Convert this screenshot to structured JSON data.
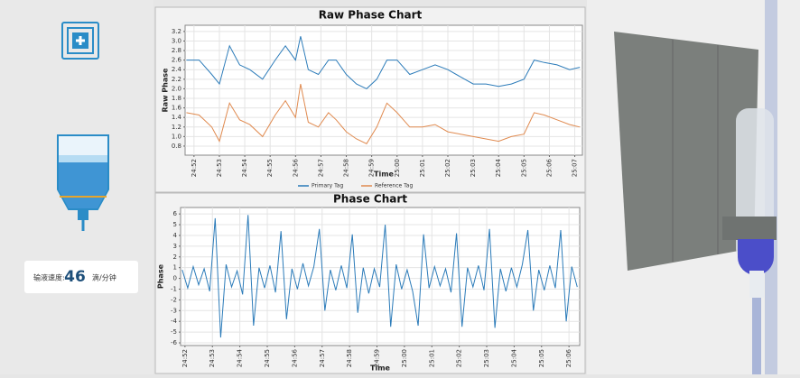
{
  "flow_rate": {
    "label": "输液速度:",
    "value": "46",
    "unit": "滴/分钟"
  },
  "chart_data": [
    {
      "type": "line",
      "title": "Raw Phase Chart",
      "x_label": "Time",
      "y_label": "Raw Phase",
      "grid": true,
      "legend": "bottom",
      "xlim": [
        1491.65,
        1507.3
      ],
      "ylim": [
        0.61,
        3.33
      ],
      "xticks": [
        {
          "value": 1492,
          "label": "24:52"
        },
        {
          "value": 1493,
          "label": "24:53"
        },
        {
          "value": 1494,
          "label": "24:54"
        },
        {
          "value": 1495,
          "label": "24:55"
        },
        {
          "value": 1496,
          "label": "24:56"
        },
        {
          "value": 1497,
          "label": "24:57"
        },
        {
          "value": 1498,
          "label": "24:58"
        },
        {
          "value": 1499,
          "label": "24:59"
        },
        {
          "value": 1500,
          "label": "25:00"
        },
        {
          "value": 1501,
          "label": "25:01"
        },
        {
          "value": 1502,
          "label": "25:02"
        },
        {
          "value": 1503,
          "label": "25:03"
        },
        {
          "value": 1504,
          "label": "25:04"
        },
        {
          "value": 1505,
          "label": "25:05"
        },
        {
          "value": 1506,
          "label": "25:06"
        },
        {
          "value": 1507,
          "label": "25:07"
        }
      ],
      "yticks": [
        0.8,
        {
          "value": 1,
          "label": "1.0"
        },
        1.2,
        1.4,
        1.6,
        1.8,
        {
          "value": 2,
          "label": "2.0"
        },
        2.2,
        2.4,
        2.6,
        2.8,
        {
          "value": 3,
          "label": "3.0"
        },
        3.2
      ],
      "x": [
        1491.7,
        1492.2,
        1492.7,
        1493.0,
        1493.4,
        1493.8,
        1494.2,
        1494.7,
        1495.2,
        1495.6,
        1496.0,
        1496.2,
        1496.5,
        1496.9,
        1497.3,
        1497.6,
        1498.0,
        1498.4,
        1498.8,
        1499.2,
        1499.6,
        1500.0,
        1500.5,
        1501.0,
        1501.5,
        1502.0,
        1502.5,
        1503.0,
        1503.5,
        1504.0,
        1504.5,
        1505.0,
        1505.4,
        1505.8,
        1506.3,
        1506.8,
        1507.2
      ],
      "series": [
        {
          "name": "Primary Tag",
          "color": "#2b7bb9",
          "values": [
            2.6,
            2.6,
            2.3,
            2.1,
            2.9,
            2.5,
            2.4,
            2.2,
            2.6,
            2.9,
            2.6,
            3.1,
            2.4,
            2.3,
            2.6,
            2.6,
            2.3,
            2.1,
            2.0,
            2.2,
            2.6,
            2.6,
            2.3,
            2.4,
            2.5,
            2.4,
            2.25,
            2.1,
            2.1,
            2.05,
            2.1,
            2.2,
            2.6,
            2.55,
            2.5,
            2.4,
            2.45
          ]
        },
        {
          "name": "Reference Tag",
          "color": "#e08a4f",
          "values": [
            1.5,
            1.45,
            1.2,
            0.9,
            1.7,
            1.35,
            1.25,
            1.0,
            1.45,
            1.75,
            1.4,
            2.1,
            1.3,
            1.2,
            1.5,
            1.35,
            1.1,
            0.95,
            0.85,
            1.2,
            1.7,
            1.5,
            1.2,
            1.2,
            1.25,
            1.1,
            1.05,
            1.0,
            0.95,
            0.9,
            1.0,
            1.05,
            1.5,
            1.45,
            1.35,
            1.25,
            1.2
          ]
        }
      ]
    },
    {
      "type": "line",
      "title": "Phase Chart",
      "x_label": "Time",
      "y_label": "Phase",
      "grid": true,
      "xlim": [
        1491.84,
        1506.39
      ],
      "ylim": [
        -6.25,
        6.6
      ],
      "xticks": [
        {
          "value": 1492,
          "label": "24:52"
        },
        {
          "value": 1493,
          "label": "24:53"
        },
        {
          "value": 1494,
          "label": "24:54"
        },
        {
          "value": 1495,
          "label": "24:55"
        },
        {
          "value": 1496,
          "label": "24:56"
        },
        {
          "value": 1497,
          "label": "24:57"
        },
        {
          "value": 1498,
          "label": "24:58"
        },
        {
          "value": 1499,
          "label": "24:59"
        },
        {
          "value": 1500,
          "label": "25:00"
        },
        {
          "value": 1501,
          "label": "25:01"
        },
        {
          "value": 1502,
          "label": "25:02"
        },
        {
          "value": 1503,
          "label": "25:03"
        },
        {
          "value": 1504,
          "label": "25:04"
        },
        {
          "value": 1505,
          "label": "25:05"
        },
        {
          "value": 1506,
          "label": "25:06"
        }
      ],
      "yticks": [
        -6,
        -5,
        -4,
        -3,
        -2,
        -1,
        0,
        1,
        2,
        3,
        4,
        5,
        6
      ],
      "x": [
        1491.9,
        1492.1,
        1492.3,
        1492.5,
        1492.7,
        1492.9,
        1493.1,
        1493.3,
        1493.5,
        1493.7,
        1493.9,
        1494.1,
        1494.3,
        1494.5,
        1494.7,
        1494.9,
        1495.1,
        1495.3,
        1495.5,
        1495.7,
        1495.9,
        1496.1,
        1496.3,
        1496.5,
        1496.7,
        1496.9,
        1497.1,
        1497.3,
        1497.5,
        1497.7,
        1497.9,
        1498.1,
        1498.3,
        1498.5,
        1498.7,
        1498.9,
        1499.1,
        1499.3,
        1499.5,
        1499.7,
        1499.9,
        1500.1,
        1500.3,
        1500.5,
        1500.7,
        1500.9,
        1501.1,
        1501.3,
        1501.5,
        1501.7,
        1501.9,
        1502.1,
        1502.3,
        1502.5,
        1502.7,
        1502.9,
        1503.1,
        1503.3,
        1503.5,
        1503.7,
        1503.9,
        1504.1,
        1504.3,
        1504.5,
        1504.7,
        1504.9,
        1505.1,
        1505.3,
        1505.5,
        1505.7,
        1505.9,
        1506.1,
        1506.3
      ],
      "series": [
        {
          "color": "#2b7bb9",
          "values": [
            0.8,
            -0.9,
            1.1,
            -0.6,
            0.9,
            -1.2,
            5.6,
            -5.5,
            1.3,
            -0.8,
            0.7,
            -1.5,
            5.9,
            -4.4,
            1.0,
            -0.9,
            1.2,
            -1.3,
            4.4,
            -3.8,
            0.9,
            -1.0,
            1.4,
            -0.7,
            1.1,
            4.6,
            -3.0,
            0.8,
            -1.1,
            1.2,
            -0.9,
            4.1,
            -3.2,
            1.0,
            -1.4,
            0.9,
            -0.8,
            5.0,
            -4.5,
            1.3,
            -1.0,
            0.8,
            -1.2,
            -4.4,
            4.1,
            -0.9,
            1.1,
            -0.7,
            0.9,
            -1.3,
            4.2,
            -4.5,
            1.0,
            -0.8,
            1.2,
            -1.1,
            4.6,
            -4.6,
            0.9,
            -1.2,
            1.0,
            -0.8,
            1.3,
            4.5,
            -3.0,
            0.8,
            -1.1,
            1.2,
            -0.9,
            4.5,
            -4.0,
            1.1,
            -0.8
          ]
        }
      ]
    }
  ]
}
